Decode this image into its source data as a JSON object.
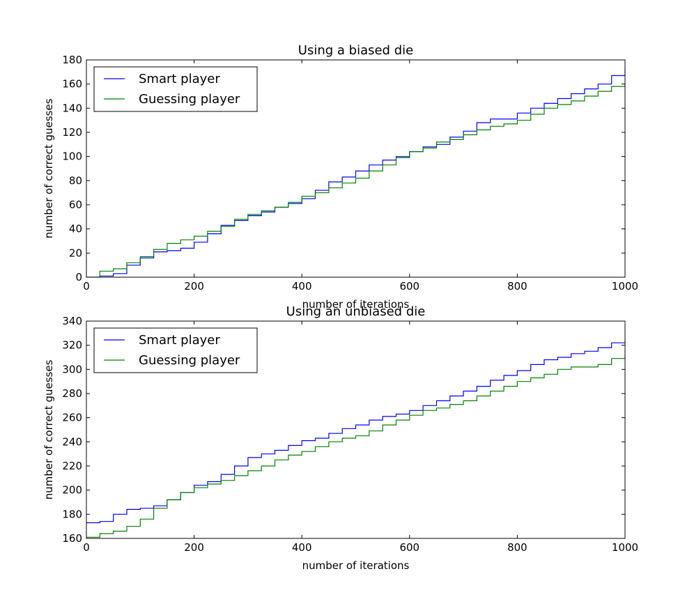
{
  "chart_data": [
    {
      "type": "line",
      "title": "Using a biased die",
      "xlabel": "number of iterations",
      "ylabel": "number of correct guesses",
      "xlim": [
        0,
        1000
      ],
      "ylim": [
        0,
        180
      ],
      "xticks": [
        0,
        200,
        400,
        600,
        800,
        1000
      ],
      "yticks": [
        0,
        20,
        40,
        60,
        80,
        100,
        120,
        140,
        160,
        180
      ],
      "legend_position": "top-left",
      "series": [
        {
          "name": "Smart player",
          "color": "#0000ff",
          "x": [
            0,
            25,
            50,
            75,
            100,
            125,
            150,
            175,
            200,
            225,
            250,
            275,
            300,
            325,
            350,
            375,
            400,
            425,
            450,
            475,
            500,
            525,
            550,
            575,
            600,
            625,
            650,
            675,
            700,
            725,
            750,
            775,
            800,
            825,
            850,
            875,
            900,
            925,
            950,
            975,
            1000
          ],
          "y": [
            0,
            1,
            3,
            10,
            16,
            21,
            22,
            24,
            29,
            36,
            43,
            47,
            51,
            54,
            58,
            61,
            65,
            72,
            79,
            83,
            88,
            93,
            97,
            100,
            104,
            108,
            110,
            116,
            121,
            128,
            131,
            131,
            136,
            140,
            144,
            148,
            152,
            156,
            160,
            167,
            173
          ]
        },
        {
          "name": "Guessing player",
          "color": "#008000",
          "x": [
            0,
            25,
            50,
            75,
            100,
            125,
            150,
            175,
            200,
            225,
            250,
            275,
            300,
            325,
            350,
            375,
            400,
            425,
            450,
            475,
            500,
            525,
            550,
            575,
            600,
            625,
            650,
            675,
            700,
            725,
            750,
            775,
            800,
            825,
            850,
            875,
            900,
            925,
            950,
            975,
            1000
          ],
          "y": [
            0,
            5,
            7,
            12,
            17,
            23,
            28,
            31,
            34,
            38,
            42,
            48,
            52,
            55,
            58,
            62,
            67,
            70,
            74,
            78,
            82,
            88,
            93,
            99,
            104,
            107,
            112,
            114,
            118,
            122,
            125,
            127,
            130,
            135,
            140,
            143,
            146,
            150,
            154,
            158,
            160
          ]
        }
      ]
    },
    {
      "type": "line",
      "title": "Using an unbiased die",
      "xlabel": "number of iterations",
      "ylabel": "number of correct guesses",
      "xlim": [
        0,
        1000
      ],
      "ylim": [
        160,
        340
      ],
      "xticks": [
        0,
        200,
        400,
        600,
        800,
        1000
      ],
      "yticks": [
        160,
        180,
        200,
        220,
        240,
        260,
        280,
        300,
        320,
        340
      ],
      "legend_position": "top-left",
      "series": [
        {
          "name": "Smart player",
          "color": "#0000ff",
          "x": [
            0,
            25,
            50,
            75,
            100,
            125,
            150,
            175,
            200,
            225,
            250,
            275,
            300,
            325,
            350,
            375,
            400,
            425,
            450,
            475,
            500,
            525,
            550,
            575,
            600,
            625,
            650,
            675,
            700,
            725,
            750,
            775,
            800,
            825,
            850,
            875,
            900,
            925,
            950,
            975,
            1000
          ],
          "y": [
            173,
            174,
            180,
            184,
            185,
            187,
            192,
            198,
            204,
            207,
            213,
            220,
            227,
            230,
            233,
            237,
            241,
            243,
            247,
            251,
            254,
            258,
            261,
            263,
            266,
            270,
            274,
            278,
            282,
            286,
            291,
            295,
            299,
            304,
            308,
            310,
            313,
            315,
            318,
            322,
            324
          ]
        },
        {
          "name": "Guessing player",
          "color": "#008000",
          "x": [
            0,
            25,
            50,
            75,
            100,
            125,
            150,
            175,
            200,
            225,
            250,
            275,
            300,
            325,
            350,
            375,
            400,
            425,
            450,
            475,
            500,
            525,
            550,
            575,
            600,
            625,
            650,
            675,
            700,
            725,
            750,
            775,
            800,
            825,
            850,
            875,
            900,
            925,
            950,
            975,
            1000
          ],
          "y": [
            161,
            164,
            166,
            170,
            176,
            185,
            192,
            198,
            202,
            205,
            208,
            212,
            216,
            220,
            225,
            229,
            232,
            236,
            240,
            243,
            245,
            249,
            254,
            258,
            262,
            266,
            268,
            271,
            274,
            278,
            282,
            286,
            290,
            293,
            296,
            300,
            302,
            302,
            304,
            309,
            312
          ]
        }
      ]
    }
  ]
}
